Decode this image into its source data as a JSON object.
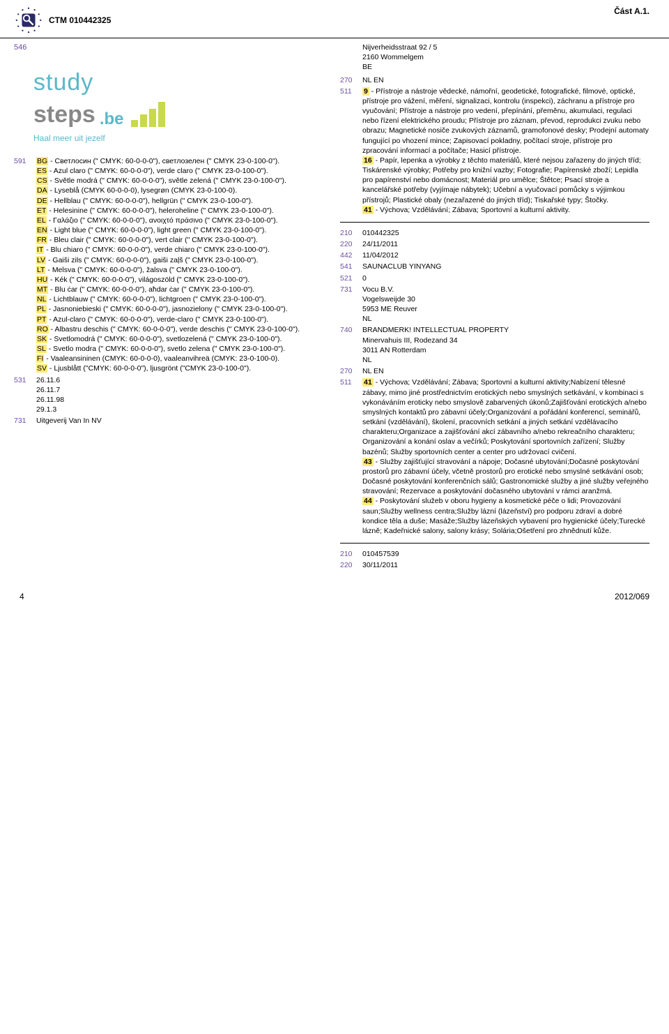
{
  "header": {
    "ctm": "CTM 010442325",
    "part": "Část A.1."
  },
  "leftCol": {
    "field546": "546",
    "study_logo": {
      "study": "study",
      "steps": "steps",
      "be": ".be",
      "tagline": "Haal meer uit jezelf",
      "bars": [
        10,
        18,
        26,
        36
      ]
    },
    "field591": "591",
    "colors": [
      {
        "lang": "BG",
        "text": " - Светлосин (\" CMYK: 60-0-0-0\"), светлозелен (\" CMYK 23-0-100-0\")."
      },
      {
        "lang": "ES",
        "text": " - Azul claro (\" CMYK: 60-0-0-0\"), verde claro (\" CMYK 23-0-100-0\")."
      },
      {
        "lang": "CS",
        "text": " - Světle modrá (\" CMYK: 60-0-0-0\"), světle zelená (\" CMYK 23-0-100-0\")."
      },
      {
        "lang": "DA",
        "text": " - Lyseblå (CMYK 60-0-0-0), lysegrøn (CMYK 23-0-100-0)."
      },
      {
        "lang": "DE",
        "text": " - Hellblau (\" CMYK: 60-0-0-0\"), hellgrün (\" CMYK 23-0-100-0\")."
      },
      {
        "lang": "ET",
        "text": " - Helesinine (\" CMYK: 60-0-0-0\"), heleroheline (\" CMYK 23-0-100-0\")."
      },
      {
        "lang": "EL",
        "text": " - Γαλάζιο (\" CMYK: 60-0-0-0\"), ανοιχτό πράσινο (\" CMYK 23-0-100-0\")."
      },
      {
        "lang": "EN",
        "text": " - Light blue (\" CMYK: 60-0-0-0\"), light green (\" CMYK 23-0-100-0\")."
      },
      {
        "lang": "FR",
        "text": " - Bleu clair (\" CMYK: 60-0-0-0\"), vert clair (\" CMYK 23-0-100-0\")."
      },
      {
        "lang": "IT",
        "text": " - Blu chiaro (\" CMYK: 60-0-0-0\"), verde chiaro (\" CMYK 23-0-100-0\")."
      },
      {
        "lang": "LV",
        "text": " - Gaiši zils (\" CMYK: 60-0-0-0\"), gaiši zaļš (\" CMYK 23-0-100-0\")."
      },
      {
        "lang": "LT",
        "text": " - Melsva (\" CMYK: 60-0-0-0\"), žalsva (\" CMYK 23-0-100-0\")."
      },
      {
        "lang": "HU",
        "text": " - Kék (\" CMYK: 60-0-0-0\"), világoszöld (\" CMYK 23-0-100-0\")."
      },
      {
        "lang": "MT",
        "text": " - Blu ċar (\" CMYK: 60-0-0-0\"), aħdar ċar (\" CMYK 23-0-100-0\")."
      },
      {
        "lang": "NL",
        "text": " - Lichtblauw (\" CMYK: 60-0-0-0\"), lichtgroen (\" CMYK 23-0-100-0\")."
      },
      {
        "lang": "PL",
        "text": " - Jasnoniebieski (\" CMYK: 60-0-0-0\"), jasnozielony (\" CMYK 23-0-100-0\")."
      },
      {
        "lang": "PT",
        "text": " - Azul-claro (\" CMYK: 60-0-0-0\"), verde-claro (\" CMYK 23-0-100-0\")."
      },
      {
        "lang": "RO",
        "text": " - Albastru deschis (\" CMYK: 60-0-0-0\"), verde deschis (\" CMYK 23-0-100-0\")."
      },
      {
        "lang": "SK",
        "text": " - Svetlomodrá (\" CMYK: 60-0-0-0\"), svetlozelená (\" CMYK 23-0-100-0\")."
      },
      {
        "lang": "SL",
        "text": " - Svetlo modra (\" CMYK: 60-0-0-0\"), svetlo zelena (\" CMYK 23-0-100-0\")."
      },
      {
        "lang": "FI",
        "text": " - Vaaleansininen (CMYK: 60-0-0-0), vaaleanvihreä (CMYK: 23-0-100-0)."
      },
      {
        "lang": "SV",
        "text": " - Ljusblått (\"CMYK: 60-0-0-0\"), ljusgrönt (\"CMYK 23-0-100-0\")."
      }
    ],
    "field531": "531",
    "vienna": [
      "26.11.6",
      "26.11.7",
      "26.11.98",
      "29.1.3"
    ],
    "field731": "731",
    "applicant": "Uitgeverij Van In NV"
  },
  "rightCol": {
    "address": [
      "Nijverheidsstraat 92 / 5",
      "2160 Wommelgem",
      "BE"
    ],
    "f270": {
      "num": "270",
      "val": "NL EN"
    },
    "f511": {
      "num": "511"
    },
    "cls9": {
      "num": "9",
      "text": " - Přístroje a nástroje vědecké, námořní, geodetické, fotografické, filmové, optické, přístroje pro vážení, měření, signalizaci, kontrolu (inspekci), záchranu a přístroje pro vyučování; Přístroje a nástroje pro vedení, přepínání, přeměnu, akumulaci, regulaci nebo řízení elektrického proudu; Přístroje pro záznam, převod, reprodukci zvuku nebo obrazu; Magnetické nosiče zvukových záznamů, gramofonové desky; Prodejní automaty fungující po vhození mince; Zapisovací pokladny, počítací stroje, přístroje pro zpracování informací a počítače; Hasicí přístroje."
    },
    "cls16": {
      "num": "16",
      "text": " - Papír, lepenka a výrobky z těchto materiálů, které nejsou zařazeny do jiných tříd; Tiskárenské výrobky; Potřeby pro knižní vazby; Fotografie; Papírenské zboží; Lepidla pro papírenství nebo domácnost; Materiál pro umělce; Štětce; Psací stroje a kancelářské potřeby (vyjímaje nábytek); Učební a vyučovací pomůcky s výjimkou přístrojů; Plastické obaly (nezařazené do jiných tříd); Tiskařské typy; Štočky."
    },
    "cls41a": {
      "num": "41",
      "text": " - Výchova; Vzdělávání; Zábava; Sportovní a kulturní aktivity."
    },
    "entry2": {
      "f210": {
        "num": "210",
        "val": "010442325"
      },
      "f220": {
        "num": "220",
        "val": "24/11/2011"
      },
      "f442": {
        "num": "442",
        "val": "11/04/2012"
      },
      "f541": {
        "num": "541",
        "val": "SAUNACLUB YINYANG"
      },
      "f521": {
        "num": "521",
        "val": "0"
      },
      "f731": {
        "num": "731",
        "lines": [
          "Vocu B.V.",
          "Vogelsweijde 30",
          "5953 ME Reuver",
          "NL"
        ]
      },
      "f740": {
        "num": "740",
        "lines": [
          "BRANDMERK! INTELLECTUAL PROPERTY",
          "Minervahuis III, Rodezand 34",
          "3011 AN Rotterdam",
          "NL"
        ]
      },
      "f270": {
        "num": "270",
        "val": "NL EN"
      },
      "f511": {
        "num": "511"
      },
      "cls41": {
        "num": "41",
        "text": " - Výchova; Vzdělávání; Zábava; Sportovní a kulturní aktivity;Nabízení tělesné zábavy, mimo jiné prostřednictvím erotických nebo smyslných setkávání, v kombinaci s vykonáváním eroticky nebo smyslově zabarvených úkonů;Zajišťování erotických a/nebo smyslných kontaktů pro zábavní účely;Organizování a pořádání konferencí, seminářů, setkání (vzdělávání), školení, pracovních setkání a jiných setkání vzdělávacího charakteru;Organizace a zajišťování akcí zábavního a/nebo rekreačního charakteru; Organizování a konání oslav a večírků; Poskytování sportovních zařízení; Služby bazénů; Služby sportovních center a center pro udržovací cvičení."
      },
      "cls43": {
        "num": "43",
        "text": " - Služby zajišťující stravování a nápoje; Dočasné ubytování;Dočasné poskytování prostorů pro zábavní účely, včetně prostorů pro erotické nebo smyslné setkávání osob; Dočasné poskytování konferenčních sálů; Gastronomické služby a jiné služby veřejného stravování; Rezervace a poskytování dočasného ubytování v rámci aranžmá."
      },
      "cls44": {
        "num": "44",
        "text": " - Poskytování služeb v oboru hygieny a kosmetické péče o lidi; Provozování saun;Služby wellness centra;Služby lázní (lázeňství) pro podporu zdraví a dobré kondice těla a duše; Masáže;Služby lázeňských vybavení pro hygienické účely;Turecké lázně; Kadeřnické salony, salony krásy; Solária;Ošetření pro zhnědnutí kůže."
      }
    },
    "entry3": {
      "f210": {
        "num": "210",
        "val": "010457539"
      },
      "f220": {
        "num": "220",
        "val": "30/11/2011"
      }
    }
  },
  "footer": {
    "page": "4",
    "issue": "2012/069"
  },
  "colors_theme": {
    "purple": "#6a4ea0",
    "highlight": "#ffea75",
    "cyan": "#5bb8c9",
    "green": "#c8d94a"
  }
}
